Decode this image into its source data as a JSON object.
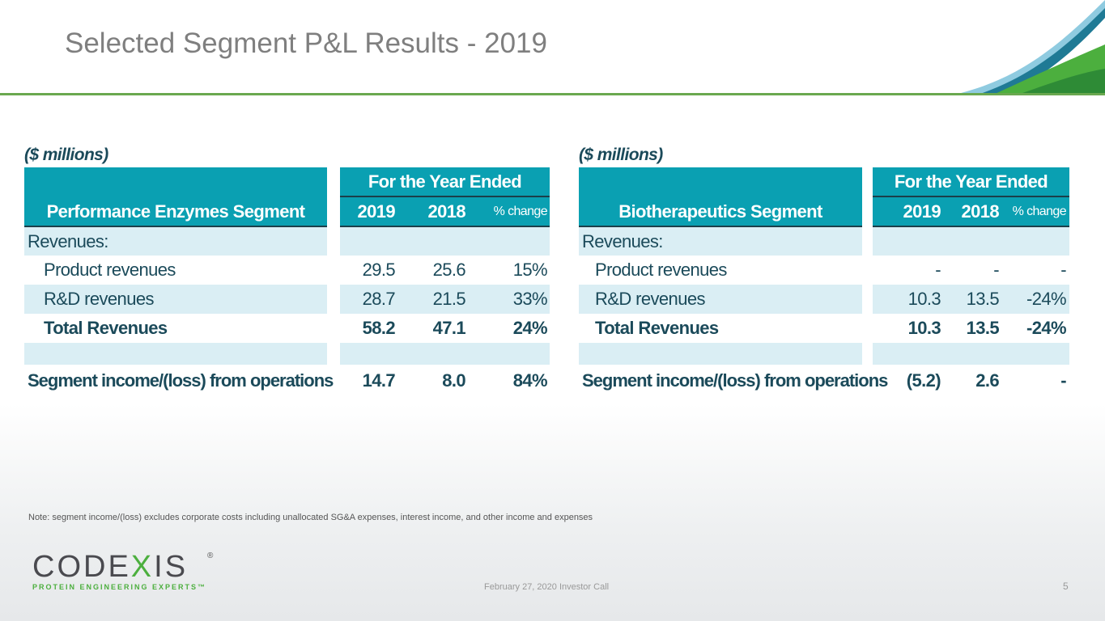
{
  "title": "Selected Segment P&L Results - 2019",
  "tables": [
    {
      "units": "($ millions)",
      "period_header": "For the Year Ended",
      "segment": "Performance Enzymes Segment",
      "columns": [
        "2019",
        "2018",
        "% change"
      ],
      "revenues_label": "Revenues:",
      "rows": [
        {
          "label": "Product revenues",
          "values": [
            "29.5",
            "25.6",
            "15%"
          ]
        },
        {
          "label": "R&D revenues",
          "values": [
            "28.7",
            "21.5",
            "33%"
          ]
        },
        {
          "label": "Total Revenues",
          "values": [
            "58.2",
            "47.1",
            "24%"
          ]
        }
      ],
      "income": {
        "label": "Segment income/(loss) from operations",
        "values": [
          "14.7",
          "8.0",
          "84%"
        ]
      }
    },
    {
      "units": "($ millions)",
      "period_header": "For the Year Ended",
      "segment": "Biotherapeutics Segment",
      "columns": [
        "2019",
        "2018",
        "% change"
      ],
      "revenues_label": "Revenues:",
      "rows": [
        {
          "label": "Product revenues",
          "values": [
            "-",
            "-",
            "-"
          ]
        },
        {
          "label": "R&D revenues",
          "values": [
            "10.3",
            "13.5",
            "-24%"
          ]
        },
        {
          "label": "Total Revenues",
          "values": [
            "10.3",
            "13.5",
            "-24%"
          ]
        }
      ],
      "income": {
        "label": "Segment income/(loss) from operations",
        "values": [
          "(5.2)",
          "2.6",
          "-"
        ]
      }
    }
  ],
  "note": "Note:  segment income/(loss) excludes corporate costs including unallocated SG&A expenses, interest income, and other income and expenses",
  "logo": {
    "name": "CODEXIS",
    "tagline": "PROTEIN ENGINEERING EXPERTS™",
    "registered": "®"
  },
  "footer": "February 27, 2020 Investor Call",
  "page_number": "5",
  "colors": {
    "header": "#0aa0b2",
    "row_highlight": "#daeef4",
    "text": "#1b4a5a",
    "accent_green": "#6aa84f"
  }
}
